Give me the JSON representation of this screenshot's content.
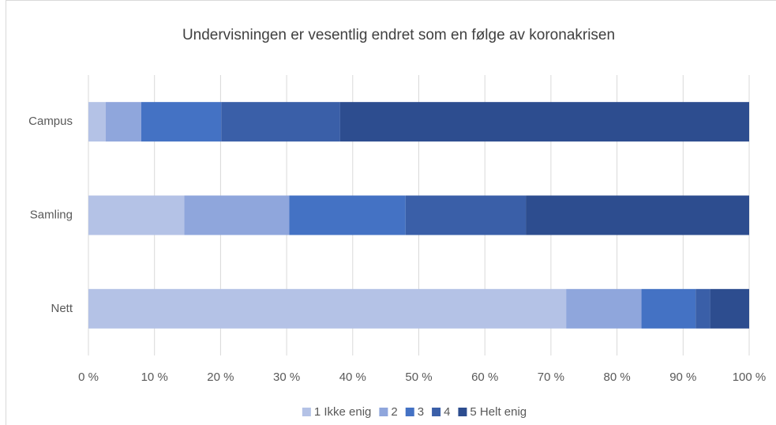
{
  "chart_data": {
    "type": "stacked_bar_horizontal",
    "title": "Undervisningen er vesentlig endret som en følge av koronakrisen",
    "categories": [
      "Campus",
      "Samling",
      "Nett"
    ],
    "series": [
      {
        "name": "1 Ikke enig",
        "color": "#b4c2e6",
        "values": [
          2.6,
          14.5,
          72.3
        ]
      },
      {
        "name": "2",
        "color": "#8fa6dc",
        "values": [
          5.4,
          15.9,
          11.4
        ]
      },
      {
        "name": "3",
        "color": "#4472c4",
        "values": [
          12.1,
          17.6,
          8.2
        ]
      },
      {
        "name": "4",
        "color": "#3a5fa8",
        "values": [
          18.0,
          18.2,
          2.2
        ]
      },
      {
        "name": "5 Helt enig",
        "color": "#2d4d8f",
        "values": [
          61.9,
          33.8,
          5.9
        ]
      }
    ],
    "xlim": [
      0,
      100
    ],
    "xticks": [
      {
        "value": 0,
        "label": "0 %"
      },
      {
        "value": 10,
        "label": "10 %"
      },
      {
        "value": 20,
        "label": "20 %"
      },
      {
        "value": 30,
        "label": "30 %"
      },
      {
        "value": 40,
        "label": "40 %"
      },
      {
        "value": 50,
        "label": "50 %"
      },
      {
        "value": 60,
        "label": "60 %"
      },
      {
        "value": 70,
        "label": "70 %"
      },
      {
        "value": 80,
        "label": "80 %"
      },
      {
        "value": 90,
        "label": "90 %"
      },
      {
        "value": 100,
        "label": "100 %"
      }
    ],
    "grid": true,
    "legend": "bottom"
  }
}
